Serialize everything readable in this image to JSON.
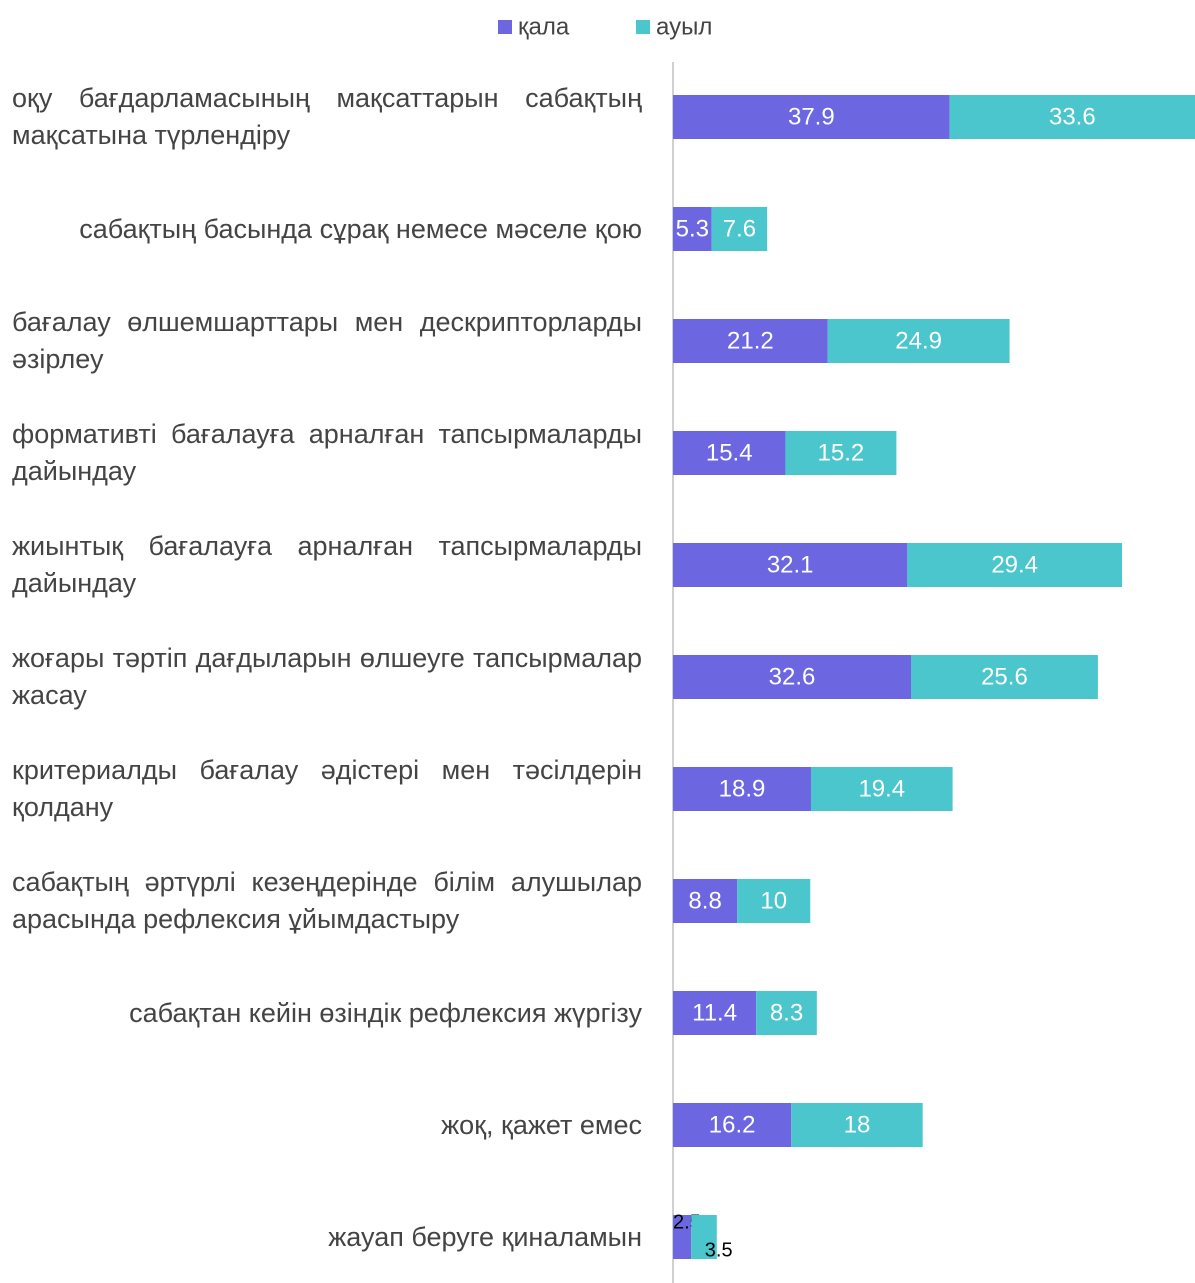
{
  "chart_data": {
    "type": "stacked-bar-horizontal",
    "categories": [
      "оқу бағдарламасының мақсаттарын сабақтың мақсатына түрлендіру",
      "сабақтың басында сұрақ немесе мәселе қою",
      "бағалау өлшемшарттары мен дескрипторларды әзірлеу",
      "формативті бағалауға арналған тапсырмаларды дайындау",
      "жиынтық бағалауға арналған тапсырмаларды дайындау",
      "жоғары тәртіп дағдыларын өлшеуге тапсырмалар жасау",
      "критериалды бағалау әдістері мен тәсілдерін қолдану",
      "сабақтың әртүрлі кезеңдерінде білім алушылар арасында рефлексия ұйымдастыру",
      "сабақтан кейін өзіндік рефлексия жүргізу",
      "жоқ, қажет емес",
      "жауап беруге қиналамын"
    ],
    "series": [
      {
        "name": "қала",
        "color": "#6c67e0",
        "values": [
          37.9,
          5.3,
          21.2,
          15.4,
          32.1,
          32.6,
          18.9,
          8.8,
          11.4,
          16.2,
          2.5
        ]
      },
      {
        "name": "ауыл",
        "color": "#4bc6cc",
        "values": [
          33.6,
          7.6,
          24.9,
          15.2,
          29.4,
          25.6,
          19.4,
          10,
          8.3,
          18,
          3.5
        ]
      }
    ],
    "xlim": [
      0,
      71.5
    ],
    "legend": "top"
  }
}
